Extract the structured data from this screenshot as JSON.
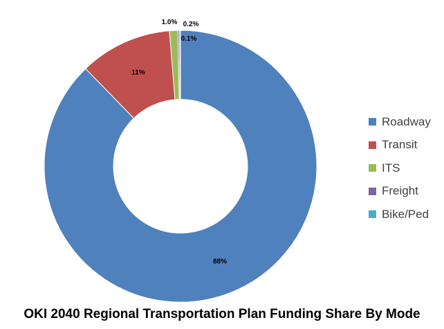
{
  "chart_data": {
    "type": "pie",
    "donut": true,
    "title": "OKI 2040 Regional Transportation Plan Funding Share By Mode",
    "categories": [
      "Roadway",
      "Transit",
      "ITS",
      "Freight",
      "Bike/Ped"
    ],
    "values": [
      88,
      11,
      1.0,
      0.2,
      0.1
    ],
    "data_labels": [
      "88%",
      "11%",
      "1.0%",
      "0.2%",
      "0.1%"
    ],
    "colors": [
      "#4F81BD",
      "#C0504D",
      "#9BBB59",
      "#8064A2",
      "#4BACC6"
    ],
    "legend_position": "right"
  }
}
